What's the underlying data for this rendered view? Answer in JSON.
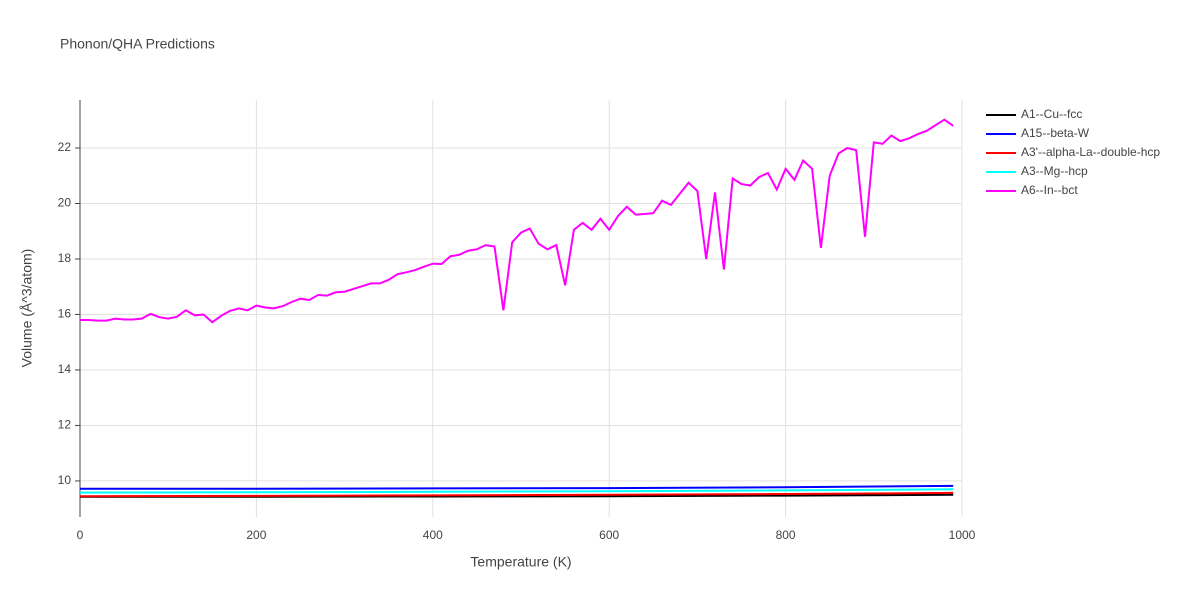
{
  "chart_data": {
    "type": "line",
    "title": "Phonon/QHA Predictions",
    "x_label": "Temperature (K)",
    "y_label": "Volume (Å^3/atom)",
    "xlim": [
      0,
      1000
    ],
    "xticks": [
      0,
      200,
      400,
      600,
      800,
      1000
    ],
    "ylim": [
      8.7,
      23.73
    ],
    "yticks": [
      10,
      12,
      14,
      16,
      18,
      20,
      22
    ],
    "grid": true,
    "legend_position": "right",
    "series": [
      {
        "name": "A1--Cu--fcc",
        "color": "#000000",
        "x": [
          0,
          200,
          400,
          600,
          800,
          990
        ],
        "values": [
          9.43,
          9.43,
          9.44,
          9.45,
          9.47,
          9.5
        ]
      },
      {
        "name": "A15--beta-W",
        "color": "#0000ff",
        "x": [
          0,
          200,
          400,
          600,
          800,
          990
        ],
        "values": [
          9.72,
          9.72,
          9.73,
          9.74,
          9.77,
          9.82
        ]
      },
      {
        "name": "A3'--alpha-La--double-hcp",
        "color": "#ff0000",
        "x": [
          0,
          200,
          400,
          600,
          800,
          990
        ],
        "values": [
          9.45,
          9.46,
          9.48,
          9.5,
          9.53,
          9.57
        ]
      },
      {
        "name": "A3--Mg--hcp",
        "color": "#00ffff",
        "x": [
          0,
          200,
          400,
          600,
          800,
          990
        ],
        "values": [
          9.58,
          9.59,
          9.61,
          9.63,
          9.66,
          9.7
        ]
      },
      {
        "name": "A6--In--bct",
        "color": "#ff00ff",
        "x": [
          0,
          10,
          20,
          30,
          40,
          50,
          60,
          70,
          80,
          90,
          100,
          110,
          120,
          130,
          140,
          150,
          160,
          170,
          180,
          190,
          200,
          210,
          220,
          230,
          240,
          250,
          260,
          270,
          280,
          290,
          300,
          310,
          320,
          330,
          340,
          350,
          360,
          370,
          380,
          390,
          400,
          410,
          420,
          430,
          440,
          450,
          460,
          470,
          480,
          490,
          500,
          510,
          520,
          530,
          540,
          550,
          560,
          570,
          580,
          590,
          600,
          610,
          620,
          630,
          640,
          650,
          660,
          670,
          680,
          690,
          700,
          710,
          720,
          730,
          740,
          750,
          760,
          770,
          780,
          790,
          800,
          810,
          820,
          830,
          840,
          850,
          860,
          870,
          880,
          890,
          900,
          910,
          920,
          930,
          940,
          950,
          960,
          970,
          980,
          990
        ],
        "values": [
          15.8,
          15.8,
          15.78,
          15.78,
          15.85,
          15.82,
          15.82,
          15.85,
          16.02,
          15.9,
          15.85,
          15.92,
          16.15,
          15.97,
          16.0,
          15.72,
          15.95,
          16.13,
          16.22,
          16.15,
          16.32,
          16.25,
          16.22,
          16.3,
          16.45,
          16.57,
          16.52,
          16.7,
          16.68,
          16.8,
          16.82,
          16.92,
          17.02,
          17.12,
          17.12,
          17.25,
          17.45,
          17.52,
          17.6,
          17.72,
          17.83,
          17.82,
          18.1,
          18.15,
          18.3,
          18.35,
          18.5,
          18.45,
          16.15,
          18.6,
          18.95,
          19.1,
          18.55,
          18.35,
          18.5,
          17.05,
          19.05,
          19.3,
          19.05,
          19.45,
          19.05,
          19.55,
          19.88,
          19.6,
          19.62,
          19.65,
          20.1,
          19.95,
          20.35,
          20.75,
          20.45,
          18.0,
          20.4,
          17.62,
          20.9,
          20.7,
          20.65,
          20.95,
          21.1,
          20.5,
          21.25,
          20.85,
          21.55,
          21.25,
          18.4,
          21.0,
          21.8,
          22.0,
          21.92,
          18.8,
          22.2,
          22.15,
          22.45,
          22.25,
          22.35,
          22.5,
          22.62,
          22.82,
          23.02,
          22.8
        ]
      }
    ]
  }
}
